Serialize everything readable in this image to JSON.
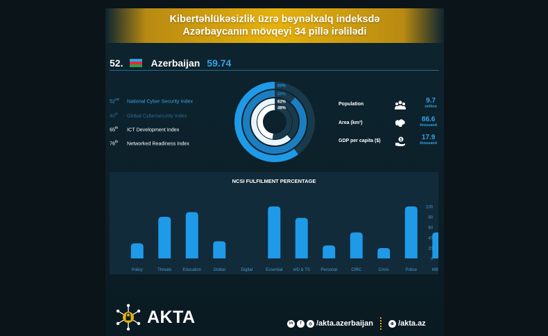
{
  "banner": {
    "line1": "Kibertəhlükəsizlik üzrə beynəlxalq indeksdə",
    "line2": "Azərbaycanın mövqeyi 34 pillə irəlilədi"
  },
  "country": {
    "rank": "52.",
    "name": "Azerbaijan",
    "score": "59.74"
  },
  "indices": [
    {
      "rank": "52",
      "suffix": "nd",
      "name": "National Cyber Security Index",
      "color": "#3aa3e6"
    },
    {
      "rank": "40",
      "suffix": "th",
      "name": "Global Cybersecurity Index",
      "color": "#2a6f98"
    },
    {
      "rank": "65",
      "suffix": "th",
      "name": "ICT Development Index",
      "color": "#ffffff"
    },
    {
      "rank": "76",
      "suffix": "th",
      "name": "Networked Readiness Index",
      "color": "#ffffff"
    }
  ],
  "rings": [
    {
      "label": "60%",
      "value": 60,
      "color": "#1f9ae8"
    },
    {
      "label": "89%",
      "value": 89,
      "color": "#1c7ec0"
    },
    {
      "label": "62%",
      "value": 62,
      "color": "#e9f4fb"
    },
    {
      "label": "48%",
      "value": 48,
      "color": "#ffffff"
    }
  ],
  "stats": [
    {
      "label": "Population",
      "value": "9.7",
      "unit": "million",
      "icon": "people-icon"
    },
    {
      "label": "Area (km²)",
      "value": "86.6",
      "unit": "thousand",
      "icon": "map-icon"
    },
    {
      "label": "GDP per capita ($)",
      "value": "17.9",
      "unit": "thousand",
      "icon": "money-hand-icon"
    }
  ],
  "chart_data": {
    "type": "bar",
    "title": "NCSI FULFILMENT PERCENTAGE",
    "categories": [
      "Policy",
      "Threats",
      "Education",
      "Global",
      "Digital",
      "Essential",
      "eID & TS",
      "Personal",
      "CIRC",
      "Crisis",
      "Police",
      "Military"
    ],
    "values": [
      29,
      80,
      89,
      33,
      0,
      100,
      78,
      25,
      50,
      20,
      100,
      50
    ],
    "yticks": [
      0,
      20,
      40,
      60,
      80,
      100
    ],
    "ylim": [
      0,
      100
    ],
    "bar_color": "#1f9ae8"
  },
  "footer": {
    "brand": "AKTA",
    "social_handle": "/akta.azerbaijan",
    "website": "/akta.az"
  },
  "colors": {
    "accent": "#34a4e8",
    "gold": "#e6b10c",
    "panel": "#112b3a"
  }
}
